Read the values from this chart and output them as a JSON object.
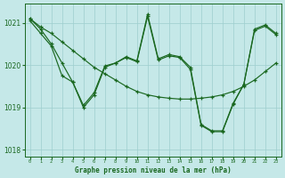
{
  "title": "Graphe pression niveau de la mer (hPa)",
  "bg_color": "#c5e8e8",
  "grid_color": "#9ecece",
  "line_color": "#1a6820",
  "xlim_min": -0.5,
  "xlim_max": 23.5,
  "ylim_min": 1017.85,
  "ylim_max": 1021.45,
  "yticks": [
    1018,
    1019,
    1020,
    1021
  ],
  "xticks": [
    0,
    1,
    2,
    3,
    4,
    5,
    6,
    7,
    8,
    9,
    10,
    11,
    12,
    13,
    14,
    15,
    16,
    17,
    18,
    19,
    20,
    21,
    22,
    23
  ],
  "series": [
    {
      "x": [
        0,
        1,
        2,
        3,
        4,
        5,
        6,
        7,
        8,
        9,
        10,
        11,
        12,
        13,
        14,
        15,
        16,
        17,
        18,
        19,
        20,
        21,
        22,
        23
      ],
      "y": [
        1021.1,
        1020.9,
        1020.75,
        1020.55,
        1020.35,
        1020.15,
        1019.95,
        1019.8,
        1019.65,
        1019.5,
        1019.38,
        1019.3,
        1019.25,
        1019.22,
        1019.2,
        1019.2,
        1019.22,
        1019.25,
        1019.3,
        1019.38,
        1019.5,
        1019.65,
        1019.85,
        1020.05
      ]
    },
    {
      "x": [
        0,
        1,
        2,
        3,
        4,
        5,
        6,
        7,
        8,
        9,
        10,
        11,
        12,
        13,
        14,
        15,
        16,
        17,
        18,
        19,
        20,
        21,
        22,
        23
      ],
      "y": [
        1021.1,
        1020.85,
        1020.5,
        1020.05,
        1019.6,
        1019.0,
        1019.3,
        1019.95,
        1020.05,
        1020.2,
        1020.1,
        1021.2,
        1020.15,
        1020.25,
        1020.2,
        1019.95,
        1018.6,
        1018.45,
        1018.45,
        1019.1,
        1019.55,
        1020.85,
        1020.95,
        1020.75
      ]
    },
    {
      "x": [
        0,
        1,
        2,
        3,
        4,
        5,
        6,
        7,
        8,
        9,
        10,
        11,
        12,
        13,
        14,
        15,
        16,
        17,
        18,
        19,
        20,
        21,
        22,
        23
      ],
      "y": [
        1021.05,
        1020.75,
        1020.45,
        1019.75,
        1019.6,
        1019.05,
        1019.35,
        1019.98,
        1020.05,
        1020.18,
        1020.08,
        1021.15,
        1020.12,
        1020.22,
        1020.18,
        1019.9,
        1018.58,
        1018.43,
        1018.43,
        1019.08,
        1019.55,
        1020.82,
        1020.92,
        1020.72
      ]
    }
  ]
}
